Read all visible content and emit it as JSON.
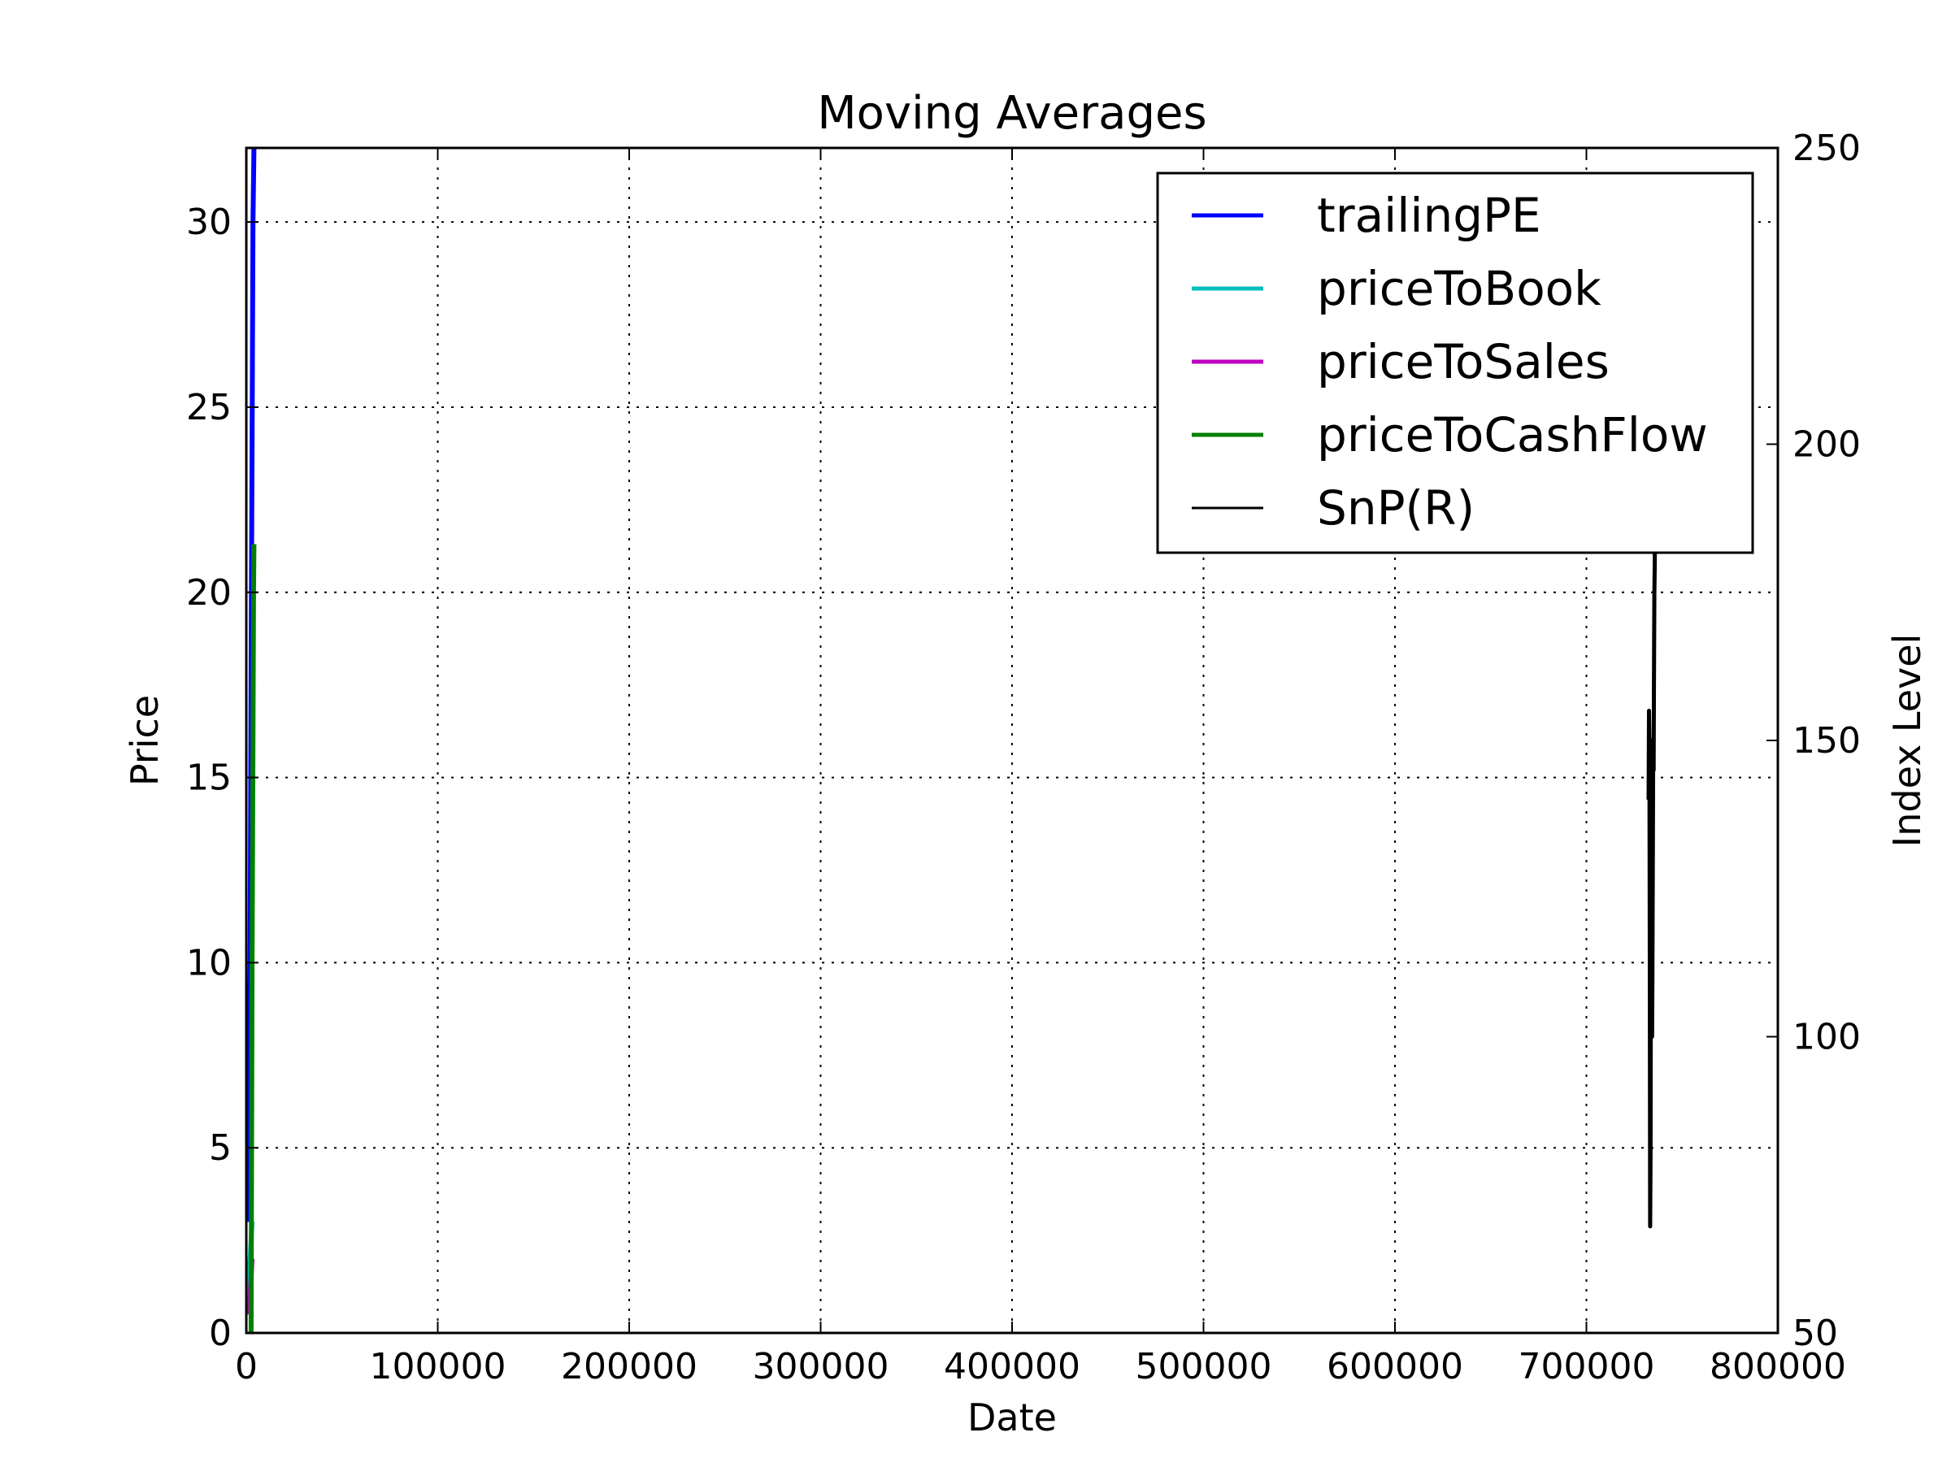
{
  "chart_data": {
    "type": "line",
    "title": "Moving Averages",
    "xlabel": "Date",
    "ylabel": "Price",
    "y2label": "Index Level",
    "xlim": [
      0,
      800000
    ],
    "ylim": [
      0,
      32
    ],
    "y2lim": [
      50,
      250
    ],
    "xticks": [
      {
        "value": 0,
        "label": "0"
      },
      {
        "value": 100000,
        "label": "100000"
      },
      {
        "value": 200000,
        "label": "200000"
      },
      {
        "value": 300000,
        "label": "300000"
      },
      {
        "value": 400000,
        "label": "400000"
      },
      {
        "value": 500000,
        "label": "500000"
      },
      {
        "value": 600000,
        "label": "600000"
      },
      {
        "value": 700000,
        "label": "700000"
      },
      {
        "value": 800000,
        "label": "800000"
      }
    ],
    "yticks": [
      {
        "value": 0,
        "label": "0"
      },
      {
        "value": 5,
        "label": "5"
      },
      {
        "value": 10,
        "label": "10"
      },
      {
        "value": 15,
        "label": "15"
      },
      {
        "value": 20,
        "label": "20"
      },
      {
        "value": 25,
        "label": "25"
      },
      {
        "value": 30,
        "label": "30"
      }
    ],
    "y2ticks": [
      {
        "value": 50,
        "label": "50"
      },
      {
        "value": 100,
        "label": "100"
      },
      {
        "value": 150,
        "label": "150"
      },
      {
        "value": 200,
        "label": "200"
      },
      {
        "value": 250,
        "label": "250"
      }
    ],
    "grid": true,
    "legend_position": "top-right",
    "series": [
      {
        "name": "trailingPE",
        "color": "#0000ff",
        "axis": "left",
        "x": [
          1000,
          2000,
          2500,
          3000,
          3500,
          4000
        ],
        "y": [
          3,
          10,
          18,
          24,
          30,
          32
        ]
      },
      {
        "name": "priceToBook",
        "color": "#00bfbf",
        "axis": "left",
        "x": [
          1000,
          2000,
          2500,
          3000,
          3500
        ],
        "y": [
          1,
          2,
          2.5,
          3,
          3
        ]
      },
      {
        "name": "priceToSales",
        "color": "#bf00bf",
        "axis": "left",
        "x": [
          1000,
          2000,
          2500,
          3000,
          3500
        ],
        "y": [
          0.5,
          1,
          1.5,
          2,
          2
        ]
      },
      {
        "name": "priceToCashFlow",
        "color": "#008000",
        "axis": "left",
        "x": [
          2500,
          3000,
          3500,
          3800,
          4000
        ],
        "y": [
          0,
          10,
          16,
          20,
          21.3
        ]
      },
      {
        "name": "SnP(R)",
        "color": "#000000",
        "axis": "right",
        "x": [
          732500,
          732700,
          732900,
          733100,
          733300,
          733500,
          733700,
          733900,
          734100,
          734300,
          734500,
          734700,
          734900,
          735100,
          735300,
          735500,
          735700,
          735900,
          736100,
          736300,
          736500,
          736600
        ],
        "y": [
          140,
          155,
          150,
          110,
          68,
          80,
          120,
          150,
          130,
          100,
          110,
          130,
          150,
          145,
          160,
          175,
          180,
          195,
          205,
          215,
          230,
          240
        ]
      }
    ]
  }
}
